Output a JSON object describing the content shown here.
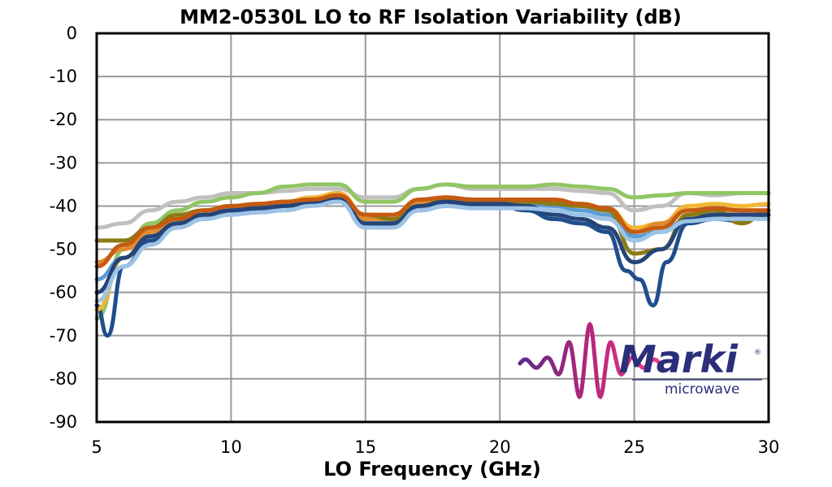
{
  "chart_data": {
    "type": "line",
    "title": "MM2-0530L LO to RF Isolation Variability (dB)",
    "xlabel": "LO Frequency (GHz)",
    "ylabel": "",
    "xlim": [
      5,
      30
    ],
    "ylim": [
      -90,
      0
    ],
    "xticks": [
      5,
      10,
      15,
      20,
      25,
      30
    ],
    "yticks": [
      0,
      -10,
      -20,
      -30,
      -40,
      -50,
      -60,
      -70,
      -80,
      -90
    ],
    "xtick_labels": [
      "5",
      "10",
      "15",
      "20",
      "25",
      "30"
    ],
    "ytick_labels": [
      "0",
      "-10",
      "-20",
      "-30",
      "-40",
      "-50",
      "-60",
      "-70",
      "-80",
      "-90"
    ],
    "grid": true,
    "legend": "none",
    "series": [
      {
        "color": "#c0c0c0",
        "x": [
          5,
          6,
          7,
          8,
          9,
          10,
          11,
          12,
          13,
          14,
          15,
          16,
          17,
          18,
          19,
          20,
          21,
          22,
          23,
          24,
          25,
          26,
          27,
          28,
          29,
          30
        ],
        "y": [
          -45,
          -44,
          -41,
          -39,
          -38,
          -37,
          -37,
          -36.5,
          -36,
          -36,
          -38,
          -38,
          -36,
          -35,
          -36,
          -36,
          -36,
          -36,
          -36.5,
          -37,
          -41,
          -40,
          -37,
          -37.5,
          -37,
          -37
        ]
      },
      {
        "color": "#92c566",
        "x": [
          5,
          6,
          7,
          8,
          9,
          10,
          11,
          12,
          13,
          14,
          15,
          16,
          17,
          18,
          19,
          20,
          21,
          22,
          23,
          24,
          25,
          26,
          27,
          28,
          29,
          30
        ],
        "y": [
          -66,
          -50,
          -44,
          -41,
          -39,
          -38,
          -37,
          -35.5,
          -35,
          -35,
          -39,
          -39,
          -36,
          -35,
          -35.5,
          -35.5,
          -35.5,
          -35,
          -35.5,
          -36,
          -38,
          -37.5,
          -37,
          -37,
          -37,
          -37
        ]
      },
      {
        "color": "#1f4e8c",
        "x": [
          5,
          5.4,
          6,
          7,
          8,
          9,
          10,
          11,
          12,
          13,
          14,
          15,
          16,
          17,
          18,
          19,
          20,
          21,
          22,
          23,
          24,
          24.7,
          25.2,
          25.7,
          26.2,
          27,
          28,
          29,
          30
        ],
        "y": [
          -63,
          -70,
          -54,
          -48,
          -45,
          -43,
          -41,
          -41,
          -40,
          -39,
          -37,
          -45,
          -44,
          -41,
          -40,
          -40,
          -40,
          -41,
          -43,
          -44,
          -46,
          -55,
          -57,
          -63,
          -53,
          -44,
          -43,
          -43.5,
          -42
        ]
      },
      {
        "color": "#f2b632",
        "x": [
          5,
          6,
          7,
          8,
          9,
          10,
          11,
          12,
          13,
          14,
          15,
          16,
          17,
          18,
          19,
          20,
          21,
          22,
          23,
          24,
          25,
          26,
          27,
          28,
          29,
          30
        ],
        "y": [
          -64,
          -52,
          -46,
          -43,
          -41,
          -40,
          -39.5,
          -39,
          -38,
          -37,
          -42,
          -42,
          -39,
          -38,
          -38.5,
          -38.5,
          -38.5,
          -38.5,
          -39.5,
          -40.5,
          -45,
          -44,
          -40,
          -39.5,
          -40,
          -39.5
        ]
      },
      {
        "color": "#e08a2f",
        "x": [
          5,
          6,
          7,
          8,
          9,
          10,
          11,
          12,
          13,
          14,
          15,
          16,
          17,
          18,
          19,
          20,
          21,
          22,
          23,
          24,
          25,
          26,
          27,
          28,
          29,
          30
        ],
        "y": [
          -53,
          -50,
          -46,
          -43,
          -41,
          -40,
          -40,
          -39,
          -38.5,
          -37.5,
          -43,
          -43,
          -39,
          -38,
          -38.5,
          -38.5,
          -38.5,
          -39,
          -40,
          -41,
          -46,
          -44,
          -41,
          -41,
          -41,
          -41
        ]
      },
      {
        "color": "#5b9bd5",
        "x": [
          5,
          6,
          7,
          8,
          9,
          10,
          11,
          12,
          13,
          14,
          15,
          16,
          17,
          18,
          19,
          20,
          21,
          22,
          23,
          24,
          25,
          26,
          27,
          28,
          29,
          30
        ],
        "y": [
          -57,
          -52,
          -47,
          -44,
          -42,
          -41,
          -41,
          -40,
          -39.5,
          -38.5,
          -44,
          -44,
          -40,
          -39,
          -39.5,
          -39.5,
          -39.5,
          -40,
          -41,
          -42,
          -47,
          -46,
          -43,
          -42,
          -42,
          -42
        ]
      },
      {
        "color": "#8b7a13",
        "x": [
          5,
          6,
          7,
          8,
          9,
          10,
          11,
          12,
          13,
          14,
          15,
          16,
          17,
          18,
          19,
          20,
          21,
          22,
          23,
          24,
          25,
          26,
          27,
          28,
          29,
          30
        ],
        "y": [
          -48,
          -48,
          -45,
          -42,
          -41,
          -40,
          -40,
          -39,
          -39,
          -38,
          -42,
          -43,
          -40,
          -38.5,
          -39,
          -39,
          -39,
          -39.5,
          -40,
          -41,
          -51,
          -50,
          -42,
          -41,
          -44,
          -41
        ]
      },
      {
        "color": "#264478",
        "x": [
          5,
          6,
          7,
          8,
          9,
          10,
          11,
          12,
          13,
          14,
          15,
          16,
          17,
          18,
          19,
          20,
          21,
          22,
          23,
          24,
          25,
          26,
          27,
          28,
          29,
          30
        ],
        "y": [
          -60,
          -52,
          -47,
          -44,
          -42,
          -41,
          -40.5,
          -40,
          -39,
          -38,
          -44,
          -44,
          -40,
          -39,
          -39.5,
          -39.5,
          -40,
          -42,
          -43,
          -45,
          -53,
          -50,
          -43,
          -42,
          -42,
          -42
        ]
      },
      {
        "color": "#c55a11",
        "x": [
          5,
          6,
          7,
          8,
          9,
          10,
          11,
          12,
          13,
          14,
          15,
          16,
          17,
          18,
          19,
          20,
          21,
          22,
          23,
          24,
          25,
          26,
          27,
          28,
          29,
          30
        ],
        "y": [
          -54,
          -49,
          -45,
          -43,
          -41,
          -40,
          -39.5,
          -39,
          -38.5,
          -37.5,
          -42,
          -42,
          -38.5,
          -38,
          -38.5,
          -38.5,
          -38.5,
          -38.5,
          -39.5,
          -40.5,
          -46,
          -45,
          -41,
          -40.5,
          -41,
          -41
        ]
      },
      {
        "color": "#9dc3e6",
        "x": [
          5,
          6,
          7,
          8,
          9,
          10,
          11,
          12,
          13,
          14,
          15,
          16,
          17,
          18,
          19,
          20,
          21,
          22,
          23,
          24,
          25,
          26,
          27,
          28,
          29,
          30
        ],
        "y": [
          -62,
          -54,
          -49,
          -45,
          -43,
          -42,
          -41.5,
          -41,
          -40,
          -39,
          -45,
          -45,
          -41,
          -40,
          -40.5,
          -40.5,
          -40.5,
          -41,
          -42,
          -43,
          -48,
          -46,
          -43.5,
          -43,
          -43,
          -43
        ]
      }
    ]
  },
  "logo": {
    "brand": "Marki",
    "tagline": "microwave",
    "registered": "®",
    "colors": [
      "#5b2a86",
      "#b5267a",
      "#e83e8c"
    ]
  }
}
